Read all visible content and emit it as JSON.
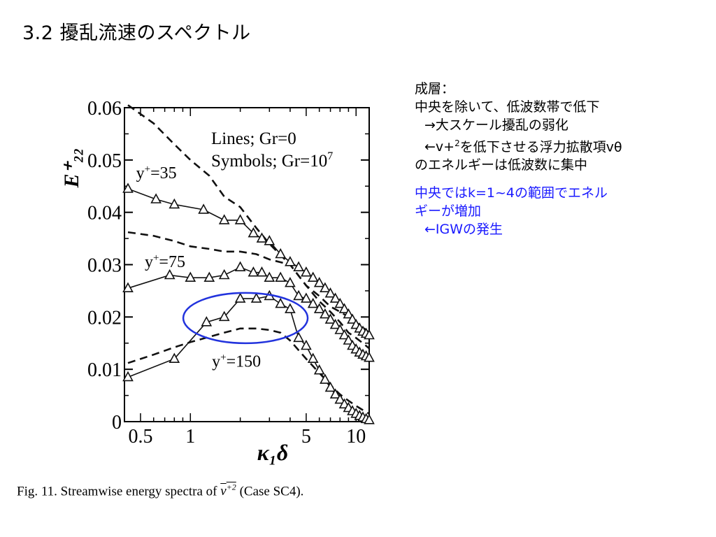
{
  "slide": {
    "title": "3.2 擾乱流速のスペクトル"
  },
  "notes": {
    "heading": "成層：",
    "line1": "中央を除いて、低波数帯で低下",
    "line2": "→大スケール擾乱の弱化",
    "line3_prefix": "←v+",
    "line3_sup": "2",
    "line3_suffix": "を低下させる浮力拡散項vθ",
    "line4": "のエネルギーは低波数に集中",
    "blue1": "中央ではk=1~4の範囲でエネル",
    "blue2": "ギーが増加",
    "blue3": "←IGWの発生",
    "blue_color": "#1a1aff"
  },
  "caption": {
    "prefix": "Fig.  11.  Streamwise energy spectra of ",
    "var": "v",
    "sup": "+2",
    "suffix": " (Case SC4)."
  },
  "chart_data": {
    "type": "line",
    "xscale": "log",
    "xlim": [
      0.4,
      12
    ],
    "ylim": [
      0,
      0.06
    ],
    "xlabel": "κ₁δ",
    "ylabel": "E⁺₂₂",
    "xticks": [
      {
        "v": 0.5,
        "label": "0.5"
      },
      {
        "v": 1,
        "label": "1"
      },
      {
        "v": 5,
        "label": "5"
      },
      {
        "v": 10,
        "label": "10"
      }
    ],
    "yticks": [
      {
        "v": 0,
        "label": "0"
      },
      {
        "v": 0.01,
        "label": "0.01"
      },
      {
        "v": 0.02,
        "label": "0.02"
      },
      {
        "v": 0.03,
        "label": "0.03"
      },
      {
        "v": 0.04,
        "label": "0.04"
      },
      {
        "v": 0.05,
        "label": "0.05"
      },
      {
        "v": 0.06,
        "label": "0.06"
      }
    ],
    "legend_line1": "Lines; Gr=0",
    "legend_line2": "Symbols; Gr=10",
    "legend_sup": "7",
    "legend_position": "top-right",
    "grid": false,
    "annotations": [
      {
        "base": "y",
        "sup": "+",
        "rest": "=35",
        "x": 0.47,
        "y": 0.0465
      },
      {
        "base": "y",
        "sup": "+",
        "rest": "=75",
        "x": 0.53,
        "y": 0.0295
      },
      {
        "base": "y",
        "sup": "+",
        "rest": "=150",
        "x": 1.35,
        "y": 0.0105
      }
    ],
    "highlight": {
      "x": 2.15,
      "y": 0.0198,
      "color": "#2233dd"
    },
    "series": [
      {
        "style": "dashed",
        "points": [
          [
            0.42,
            0.0605
          ],
          [
            0.6,
            0.057
          ],
          [
            0.8,
            0.053
          ],
          [
            1,
            0.05
          ],
          [
            1.3,
            0.047
          ],
          [
            1.6,
            0.043
          ],
          [
            2,
            0.041
          ],
          [
            2.5,
            0.037
          ],
          [
            3,
            0.034
          ],
          [
            4,
            0.03
          ],
          [
            5,
            0.026
          ],
          [
            6,
            0.024
          ],
          [
            7,
            0.022
          ],
          [
            8,
            0.021
          ],
          [
            9,
            0.02
          ],
          [
            10,
            0.019
          ],
          [
            11,
            0.018
          ],
          [
            12,
            0.017
          ]
        ]
      },
      {
        "style": "dashed",
        "points": [
          [
            0.42,
            0.0362
          ],
          [
            0.6,
            0.0355
          ],
          [
            0.8,
            0.0345
          ],
          [
            1,
            0.0335
          ],
          [
            1.3,
            0.033
          ],
          [
            1.6,
            0.0325
          ],
          [
            2,
            0.0325
          ],
          [
            2.5,
            0.032
          ],
          [
            3,
            0.031
          ],
          [
            4,
            0.03
          ],
          [
            5,
            0.026
          ],
          [
            6,
            0.023
          ],
          [
            7,
            0.021
          ],
          [
            8,
            0.019
          ],
          [
            9,
            0.017
          ],
          [
            10,
            0.016
          ],
          [
            11,
            0.015
          ],
          [
            12,
            0.014
          ]
        ]
      },
      {
        "style": "dashed",
        "points": [
          [
            0.42,
            0.0112
          ],
          [
            0.6,
            0.0128
          ],
          [
            0.8,
            0.0142
          ],
          [
            1,
            0.0152
          ],
          [
            1.3,
            0.0162
          ],
          [
            1.6,
            0.017
          ],
          [
            2,
            0.0178
          ],
          [
            2.5,
            0.0178
          ],
          [
            3,
            0.0175
          ],
          [
            3.5,
            0.017
          ],
          [
            4,
            0.0155
          ],
          [
            5,
            0.012
          ],
          [
            6,
            0.0093
          ],
          [
            7,
            0.007
          ],
          [
            8,
            0.0052
          ],
          [
            9,
            0.004
          ],
          [
            10,
            0.003
          ],
          [
            11,
            0.0022
          ],
          [
            12,
            0.0015
          ]
        ]
      },
      {
        "style": "solid-triangles",
        "points": [
          [
            0.42,
            0.0445
          ],
          [
            0.62,
            0.0425
          ],
          [
            0.8,
            0.0415
          ],
          [
            1.2,
            0.0405
          ],
          [
            1.6,
            0.0385
          ],
          [
            2,
            0.0385
          ],
          [
            2.4,
            0.036
          ],
          [
            2.7,
            0.035
          ],
          [
            3,
            0.0345
          ],
          [
            3.5,
            0.032
          ],
          [
            4,
            0.0305
          ],
          [
            4.5,
            0.0295
          ],
          [
            5,
            0.0285
          ],
          [
            5.5,
            0.0275
          ],
          [
            6,
            0.0265
          ],
          [
            6.5,
            0.0255
          ],
          [
            7,
            0.0245
          ],
          [
            7.5,
            0.0235
          ],
          [
            8,
            0.0225
          ],
          [
            8.5,
            0.0215
          ],
          [
            9,
            0.0205
          ],
          [
            9.5,
            0.0195
          ],
          [
            10,
            0.0185
          ],
          [
            10.5,
            0.0178
          ],
          [
            11,
            0.0172
          ],
          [
            11.5,
            0.0168
          ],
          [
            12,
            0.0165
          ]
        ]
      },
      {
        "style": "solid-triangles",
        "points": [
          [
            0.42,
            0.0255
          ],
          [
            0.75,
            0.028
          ],
          [
            1,
            0.0275
          ],
          [
            1.3,
            0.0275
          ],
          [
            1.6,
            0.028
          ],
          [
            2,
            0.0295
          ],
          [
            2.4,
            0.0285
          ],
          [
            2.7,
            0.0285
          ],
          [
            3,
            0.0275
          ],
          [
            3.5,
            0.0275
          ],
          [
            4,
            0.0265
          ],
          [
            4.5,
            0.024
          ],
          [
            5,
            0.0235
          ],
          [
            5.5,
            0.0225
          ],
          [
            6,
            0.0215
          ],
          [
            6.5,
            0.0205
          ],
          [
            7,
            0.0195
          ],
          [
            7.5,
            0.0185
          ],
          [
            8,
            0.0175
          ],
          [
            8.5,
            0.0165
          ],
          [
            9,
            0.0155
          ],
          [
            9.5,
            0.0145
          ],
          [
            10,
            0.0138
          ],
          [
            10.5,
            0.0132
          ],
          [
            11,
            0.0128
          ],
          [
            11.5,
            0.0125
          ],
          [
            12,
            0.0122
          ]
        ]
      },
      {
        "style": "solid-triangles",
        "points": [
          [
            0.42,
            0.0085
          ],
          [
            0.8,
            0.012
          ],
          [
            1.25,
            0.019
          ],
          [
            1.6,
            0.02
          ],
          [
            2,
            0.0235
          ],
          [
            2.5,
            0.0235
          ],
          [
            3,
            0.024
          ],
          [
            3.5,
            0.0225
          ],
          [
            4,
            0.0215
          ],
          [
            4.5,
            0.016
          ],
          [
            5,
            0.0145
          ],
          [
            5.5,
            0.012
          ],
          [
            6,
            0.0098
          ],
          [
            6.5,
            0.008
          ],
          [
            7,
            0.0065
          ],
          [
            7.5,
            0.0052
          ],
          [
            8,
            0.0042
          ],
          [
            8.5,
            0.0033
          ],
          [
            9,
            0.0026
          ],
          [
            9.5,
            0.002
          ],
          [
            10,
            0.0015
          ],
          [
            10.5,
            0.0011
          ],
          [
            11,
            0.0008
          ],
          [
            11.5,
            0.0005
          ],
          [
            12,
            0.0003
          ]
        ]
      }
    ]
  }
}
